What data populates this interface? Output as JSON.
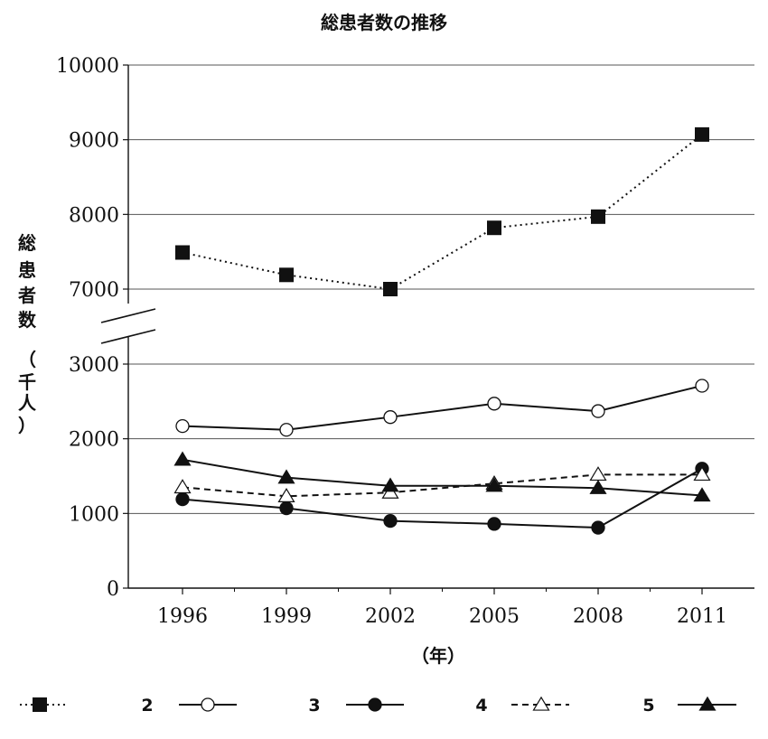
{
  "chart_data": {
    "type": "line",
    "title": "総患者数の推移",
    "xlabel": "（年）",
    "ylabel": "総患者数（千人）",
    "ylabel_chars": [
      "総",
      "患",
      "者",
      "数",
      "（",
      "千",
      "人",
      "）"
    ],
    "categories": [
      "1996",
      "1999",
      "2002",
      "2005",
      "2008",
      "2011"
    ],
    "y_ticks_lower": [
      "0",
      "1000",
      "2000",
      "3000"
    ],
    "y_ticks_upper": [
      "7000",
      "8000",
      "9000",
      "10000"
    ],
    "ylim_lower": [
      0,
      3000
    ],
    "ylim_upper": [
      7000,
      10000
    ],
    "axis_break": true,
    "grid": true,
    "legend_position": "bottom",
    "series": [
      {
        "legend_label": "",
        "marker": "square-filled",
        "line": "dotted",
        "values": [
          7490,
          7190,
          7000,
          7820,
          7970,
          9070
        ]
      },
      {
        "legend_label": "2",
        "marker": "circle-open",
        "line": "solid",
        "values": [
          2170,
          2120,
          2290,
          2470,
          2370,
          2710
        ]
      },
      {
        "legend_label": "3",
        "marker": "circle-filled",
        "line": "solid",
        "values": [
          1190,
          1070,
          900,
          860,
          810,
          1600
        ]
      },
      {
        "legend_label": "4",
        "marker": "triangle-open",
        "line": "dashed",
        "values": [
          1350,
          1230,
          1280,
          1400,
          1520,
          1520
        ]
      },
      {
        "legend_label": "5",
        "marker": "triangle-filled",
        "line": "solid",
        "values": [
          1720,
          1480,
          1370,
          1370,
          1340,
          1240
        ]
      }
    ]
  }
}
